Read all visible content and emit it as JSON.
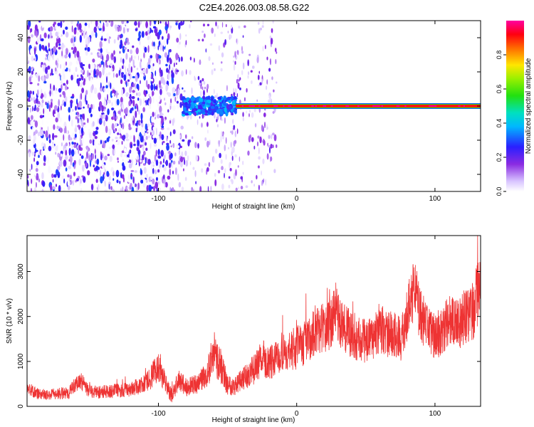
{
  "title": "C2E4.2026.003.08.58.G22",
  "colors": {
    "snr_line": "#ee3333",
    "background": "#ffffff",
    "axis": "#000000"
  },
  "chart_data": [
    {
      "type": "heatmap",
      "xlabel": "Height of straight line (km)",
      "ylabel": "Frequency (Hz)",
      "xlim": [
        -195,
        133
      ],
      "ylim": [
        -50,
        50
      ],
      "x_ticks": [
        -100,
        0,
        100
      ],
      "x_tick_labels": [
        "-100",
        "0",
        "100"
      ],
      "y_ticks": [
        -40,
        -20,
        0,
        20,
        40
      ],
      "y_tick_labels": [
        "-40",
        "-20",
        "0",
        "20",
        "40"
      ],
      "colorbar": {
        "label": "Normalized spectral amplitude",
        "range": [
          0,
          1
        ],
        "ticks": [
          0.0,
          0.2,
          0.4,
          0.6,
          0.8
        ],
        "tick_labels": [
          "0.0",
          "0.2",
          "0.4",
          "0.6",
          "0.8"
        ],
        "colormap": "rainbow: white-purple-blue-cyan-green-yellow-red-magenta"
      },
      "regions": [
        {
          "x_range": [
            -195,
            -82
          ],
          "freq_range": [
            -50,
            50
          ],
          "amplitude_range": [
            0.0,
            0.3
          ],
          "description": "broadband noise"
        },
        {
          "x_range": [
            -82,
            -44
          ],
          "freq_range": [
            -5,
            5
          ],
          "amplitude_range": [
            0.2,
            0.4
          ]
        },
        {
          "x_range": [
            -44,
            133
          ],
          "freq_range": [
            -1,
            1
          ],
          "amplitude_range": [
            0.8,
            1.0
          ],
          "description": "signal ridge near 0 Hz"
        }
      ]
    },
    {
      "type": "line",
      "xlabel": "Height of straight line (km)",
      "ylabel": "SNR (10 * v/v)",
      "xlim": [
        -195,
        133
      ],
      "ylim": [
        0,
        3800
      ],
      "x_ticks": [
        -100,
        0,
        100
      ],
      "x_tick_labels": [
        "-100",
        "0",
        "100"
      ],
      "y_ticks": [
        0,
        1000,
        2000,
        3000
      ],
      "y_tick_labels": [
        "0",
        "1000",
        "2000",
        "3000"
      ],
      "series": [
        {
          "x": [
            -195,
            -185,
            -175,
            -165,
            -157,
            -150,
            -140,
            -130,
            -120,
            -110,
            -104,
            -100,
            -92,
            -90,
            -85,
            -80,
            -72,
            -65,
            -60,
            -55,
            -50,
            -45,
            -35,
            -30,
            -25,
            -20,
            -15,
            -10,
            -5,
            0,
            5,
            10,
            15,
            20,
            25,
            28,
            32,
            40,
            50,
            55,
            60,
            68,
            75,
            78,
            82,
            85,
            90,
            95,
            100,
            105,
            110,
            115,
            120,
            125,
            128,
            131,
            133
          ],
          "y": [
            400,
            250,
            280,
            300,
            600,
            330,
            320,
            350,
            380,
            500,
            700,
            900,
            300,
            250,
            600,
            420,
            500,
            700,
            1200,
            900,
            500,
            450,
            700,
            850,
            1100,
            950,
            1050,
            1250,
            1200,
            1300,
            1400,
            1550,
            1700,
            1750,
            1850,
            2200,
            1800,
            1600,
            1450,
            1500,
            1750,
            1600,
            1500,
            1800,
            2300,
            2600,
            2000,
            1750,
            1550,
            1700,
            1900,
            1800,
            1950,
            2000,
            2200,
            2600,
            3200
          ],
          "spread": [
            150,
            120,
            130,
            140,
            200,
            150,
            150,
            160,
            170,
            200,
            300,
            350,
            180,
            160,
            250,
            200,
            220,
            300,
            500,
            400,
            250,
            220,
            300,
            350,
            400,
            380,
            400,
            450,
            450,
            480,
            500,
            520,
            550,
            560,
            580,
            600,
            560,
            540,
            520,
            520,
            560,
            540,
            520,
            560,
            650,
            700,
            600,
            560,
            520,
            560,
            600,
            580,
            620,
            640,
            700,
            800,
            900
          ]
        }
      ]
    }
  ]
}
